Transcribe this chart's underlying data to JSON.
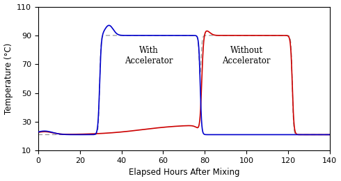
{
  "title": "",
  "xlabel": "Elapsed Hours After Mixing",
  "ylabel": "Temperature (°C)",
  "xlim": [
    0,
    140
  ],
  "ylim": [
    10,
    110
  ],
  "xticks": [
    0,
    20,
    40,
    60,
    80,
    100,
    120,
    140
  ],
  "yticks": [
    10,
    30,
    50,
    70,
    90,
    110
  ],
  "label_with": "With\nAccelerator",
  "label_without": "Without\nAccelerator",
  "steam_color": "#999999",
  "blue_color": "#0000cc",
  "red_color": "#cc0000",
  "steam_with_start": 29.5,
  "steam_with_end": 77.5,
  "steam_without_start": 78.0,
  "steam_without_end": 122.0,
  "steam_temp": 90,
  "ambient": 21,
  "figsize": [
    4.9,
    2.6
  ],
  "dpi": 100
}
